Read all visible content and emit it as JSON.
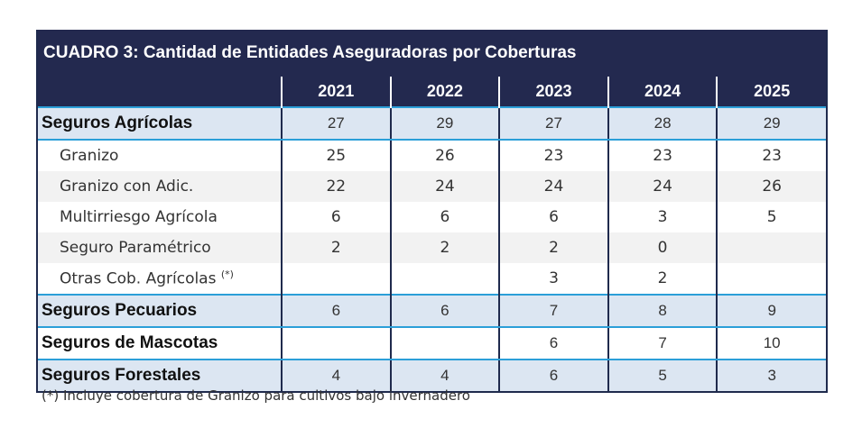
{
  "table": {
    "title": "CUADRO 3: Cantidad de Entidades Aseguradoras por Coberturas",
    "years": [
      "2021",
      "2022",
      "2023",
      "2024",
      "2025"
    ],
    "rows": [
      {
        "label": "Seguros Agrícolas",
        "values": [
          "27",
          "29",
          "27",
          "28",
          "29"
        ]
      },
      {
        "label": "Granizo",
        "values": [
          "25",
          "26",
          "23",
          "23",
          "23"
        ]
      },
      {
        "label": "Granizo con Adic.",
        "values": [
          "22",
          "24",
          "24",
          "24",
          "26"
        ]
      },
      {
        "label": "Multirriesgo Agrícola",
        "values": [
          "6",
          "6",
          "6",
          "3",
          "5"
        ]
      },
      {
        "label": "Seguro Paramétrico",
        "values": [
          "2",
          "2",
          "2",
          "0",
          ""
        ]
      },
      {
        "label": "Otras Cob. Agrícolas",
        "sup": "(*)",
        "values": [
          "",
          "",
          "3",
          "2",
          ""
        ]
      },
      {
        "label": "Seguros Pecuarios",
        "values": [
          "6",
          "6",
          "7",
          "8",
          "9"
        ]
      },
      {
        "label": "Seguros de Mascotas",
        "values": [
          "",
          "",
          "6",
          "7",
          "10"
        ]
      },
      {
        "label": "Seguros Forestales",
        "values": [
          "4",
          "4",
          "6",
          "5",
          "3"
        ]
      }
    ]
  },
  "footnote": "(*) Incluye cobertura de Granizo para cultivos bajo invernadero"
}
